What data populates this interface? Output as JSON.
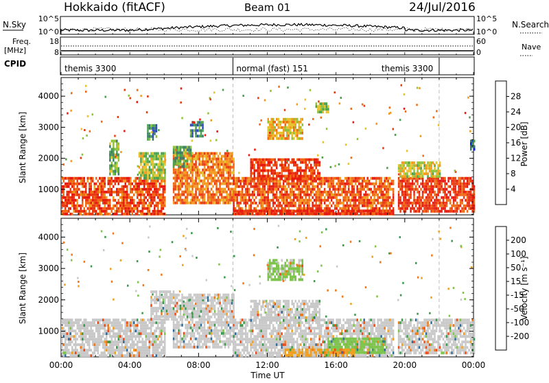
{
  "header": {
    "site": "Hokkaido (fitACF)",
    "beam": "Beam 01",
    "date": "24/Jul/2016"
  },
  "params_panel": {
    "nsky_label": "N.Sky",
    "nsky_ticks": [
      "10^5",
      "10^0"
    ],
    "nsearch_label": "N.Search",
    "nsearch_ticks": [
      "10^5",
      "10^0"
    ],
    "freq_label": "Freq.",
    "freq_unit": "[MHz]",
    "freq_ticks": [
      "18",
      "8"
    ],
    "nave_label": "Nave",
    "nave_ticks": [
      "60",
      "0"
    ],
    "cpid_label": "CPID",
    "cpid_segments": [
      {
        "start_hour": 0,
        "end_hour": 10,
        "label": "themis 3300"
      },
      {
        "start_hour": 10,
        "end_hour": 22,
        "label": "normal (fast) 151"
      },
      {
        "start_hour": 22,
        "end_hour": 24,
        "label": "themis 3300"
      }
    ]
  },
  "chart_data": [
    {
      "type": "heatmap",
      "title": "",
      "xlabel": "Time UT",
      "ylabel": "Slant Range [km]",
      "xlim": [
        0,
        24
      ],
      "ylim": [
        180,
        4600
      ],
      "x_ticks": [
        "00:00",
        "04:00",
        "08:00",
        "12:00",
        "16:00",
        "20:00",
        "00:00"
      ],
      "y_ticks": [
        1000,
        2000,
        3000,
        4000
      ],
      "mode_change_hours": [
        10,
        22
      ],
      "colorbar": {
        "label": "Power [dB]",
        "ticks": [
          "4",
          "8",
          "12",
          "16",
          "20",
          "24",
          "28"
        ],
        "range": [
          0,
          30
        ],
        "colors": [
          "#0a1fd6",
          "#2c4bb8",
          "#3b7a6a",
          "#4aa24a",
          "#8fc23a",
          "#e8c22a",
          "#f29a1c",
          "#f06a14",
          "#ea3a10",
          "#e61a0e"
        ]
      },
      "regions": [
        {
          "t0": 0.0,
          "t1": 6.0,
          "r0": 250,
          "r1": 1400,
          "v": 25
        },
        {
          "t0": 2.8,
          "t1": 3.3,
          "r0": 1500,
          "r1": 2600,
          "v": 12
        },
        {
          "t0": 4.5,
          "t1": 6.0,
          "r0": 1400,
          "r1": 2200,
          "v": 14
        },
        {
          "t0": 5.0,
          "t1": 5.5,
          "r0": 2600,
          "r1": 3100,
          "v": 8
        },
        {
          "t0": 6.5,
          "t1": 10.0,
          "r0": 600,
          "r1": 2200,
          "v": 22
        },
        {
          "t0": 6.5,
          "t1": 7.5,
          "r0": 1700,
          "r1": 2400,
          "v": 12
        },
        {
          "t0": 7.5,
          "t1": 8.2,
          "r0": 2700,
          "r1": 3200,
          "v": 8
        },
        {
          "t0": 10.0,
          "t1": 19.3,
          "r0": 250,
          "r1": 1400,
          "v": 24
        },
        {
          "t0": 11.0,
          "t1": 15.0,
          "r0": 1300,
          "r1": 2000,
          "v": 26
        },
        {
          "t0": 12.0,
          "t1": 14.0,
          "r0": 2600,
          "r1": 3300,
          "v": 18
        },
        {
          "t0": 14.8,
          "t1": 15.5,
          "r0": 3500,
          "r1": 3800,
          "v": 14
        },
        {
          "t0": 10.0,
          "t1": 19.3,
          "r0": 200,
          "r1": 350,
          "v": 27
        },
        {
          "t0": 19.6,
          "t1": 24.0,
          "r0": 300,
          "r1": 1400,
          "v": 26
        },
        {
          "t0": 19.6,
          "t1": 22.0,
          "r0": 1400,
          "r1": 1900,
          "v": 16
        },
        {
          "t0": 23.8,
          "t1": 24.0,
          "r0": 2300,
          "r1": 2600,
          "v": 6
        }
      ]
    },
    {
      "type": "heatmap",
      "title": "",
      "xlabel": "Time UT",
      "ylabel": "Slant Range [km]",
      "xlim": [
        0,
        24
      ],
      "ylim": [
        180,
        4600
      ],
      "x_ticks": [
        "00:00",
        "04:00",
        "08:00",
        "12:00",
        "16:00",
        "20:00",
        "00:00"
      ],
      "y_ticks": [
        1000,
        2000,
        3000,
        4000
      ],
      "mode_change_hours": [
        10,
        22
      ],
      "colorbar": {
        "label": "Velocity [m s⁻¹]",
        "ticks": [
          "200",
          "100",
          "50",
          "15",
          "-15",
          "-50",
          "-100",
          "-200"
        ],
        "colors": [
          "#1a2aa8",
          "#2e6c9a",
          "#3a9a4a",
          "#7cc44a",
          "#c8c8c8",
          "#f0a020",
          "#f07818",
          "#f04a14",
          "#e81a10"
        ]
      },
      "regions": [
        {
          "t0": 0.0,
          "t1": 6.0,
          "r0": 250,
          "r1": 1400,
          "v": 0
        },
        {
          "t0": 5.2,
          "t1": 6.5,
          "r0": 1400,
          "r1": 2300,
          "v": 0
        },
        {
          "t0": 6.5,
          "t1": 10.0,
          "r0": 500,
          "r1": 2200,
          "v": 0
        },
        {
          "t0": 10.0,
          "t1": 19.3,
          "r0": 250,
          "r1": 1400,
          "v": 0
        },
        {
          "t0": 11.0,
          "t1": 15.0,
          "r0": 1300,
          "r1": 2000,
          "v": 0
        },
        {
          "t0": 15.5,
          "t1": 18.8,
          "r0": 350,
          "r1": 800,
          "v": 40
        },
        {
          "t0": 13.0,
          "t1": 17.0,
          "r0": 250,
          "r1": 450,
          "v": -40
        },
        {
          "t0": 19.6,
          "t1": 24.0,
          "r0": 300,
          "r1": 1400,
          "v": 0
        },
        {
          "t0": 12.0,
          "t1": 14.0,
          "r0": 2600,
          "r1": 3300,
          "v": 20
        }
      ]
    }
  ]
}
